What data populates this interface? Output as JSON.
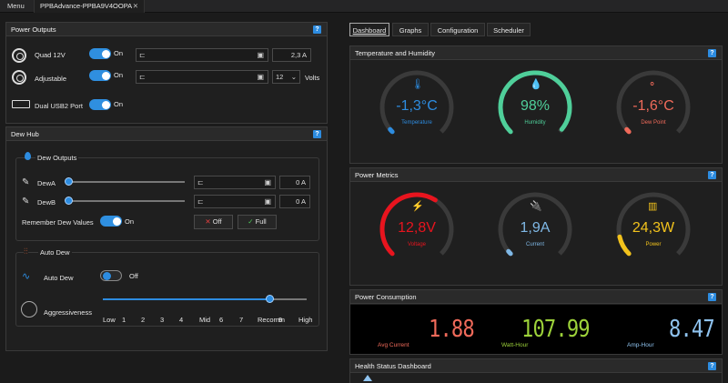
{
  "menubar": {
    "menu": "Menu",
    "doc_tab": "PPBAdvance-PPBA9V4OOPA",
    "close": "✕"
  },
  "power_outputs": {
    "title": "Power Outputs",
    "help": "?",
    "quad": {
      "label": "Quad 12V",
      "toggle": "On",
      "current": "2,3 A"
    },
    "adjustable": {
      "label": "Adjustable",
      "toggle": "On",
      "voltage": "12",
      "unit": "Volts"
    },
    "usb": {
      "label": "Dual USB2 Port",
      "toggle": "On"
    }
  },
  "dew_hub": {
    "title": "Dew Hub",
    "help": "?",
    "outputs_title": "Dew Outputs",
    "dew_a": {
      "label": "DewA",
      "value": "0 A"
    },
    "dew_b": {
      "label": "DewB",
      "value": "0 A"
    },
    "remember": {
      "label": "Remember Dew Values",
      "toggle": "On"
    },
    "off_button": "Off",
    "full_button": "Full",
    "auto_title": "Auto Dew",
    "auto_dew": {
      "label": "Auto Dew",
      "toggle": "Off"
    },
    "aggressiveness": {
      "label": "Aggressiveness",
      "level": 0.82,
      "ticks": [
        "Low",
        "1",
        "2",
        "3",
        "4",
        "Mid",
        "6",
        "7",
        "Recomm",
        "9",
        "High"
      ]
    }
  },
  "tabs": [
    "Dashboard",
    "Graphs",
    "Configuration",
    "Scheduler"
  ],
  "temp_humidity": {
    "title": "Temperature and Humidity",
    "help": "?",
    "gauges": [
      {
        "value": "-1,3°C",
        "label": "Temperature",
        "color": "#2d8ce0",
        "level": 0.0
      },
      {
        "value": "98%",
        "label": "Humidity",
        "color": "#4fcf9a",
        "level": 0.98
      },
      {
        "value": "-1,6°C",
        "label": "Dew Point",
        "color": "#f06a5a",
        "level": 0.0
      }
    ]
  },
  "power_metrics": {
    "title": "Power Metrics",
    "help": "?",
    "gauges": [
      {
        "value": "12,8V",
        "label": "Voltage",
        "color": "#e8141e",
        "level": 0.62
      },
      {
        "value": "1,9A",
        "label": "Current",
        "color": "#7fb8e6",
        "level": 0.0
      },
      {
        "value": "24,3W",
        "label": "Power",
        "color": "#f2c21c",
        "level": 0.12
      }
    ]
  },
  "power_consumption": {
    "title": "Power Consumption",
    "help": "?",
    "avg_current": {
      "value": "1.88",
      "label": "Avg Current",
      "color": "#f06a5a"
    },
    "watt_hour": {
      "value": "107.99",
      "label": "Watt-Hour",
      "color": "#9dd23a"
    },
    "amp_hour": {
      "value": "8.47",
      "label": "Amp-Hour",
      "color": "#8fc3ef"
    }
  },
  "health": {
    "title": "Health Status Dashboard",
    "help": "?"
  }
}
